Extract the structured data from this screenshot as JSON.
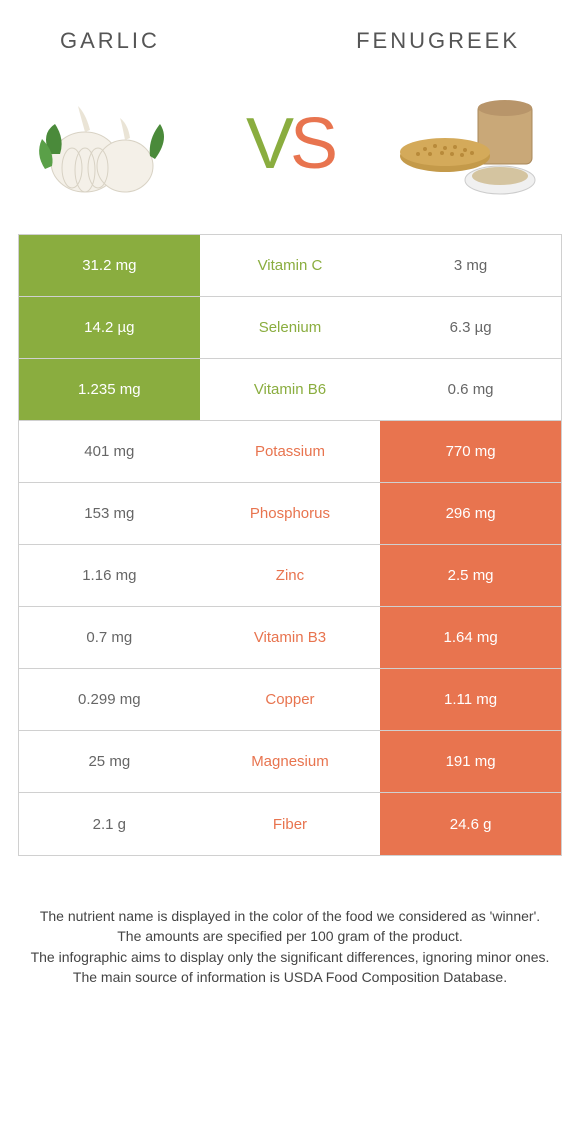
{
  "colors": {
    "left": "#8aad3f",
    "right": "#e8744f",
    "left_loser_bg": "#ffffff",
    "right_loser_bg": "#ffffff",
    "loser_text": "#666666",
    "border": "#d0d0d0"
  },
  "header": {
    "left_title": "GARLIC",
    "right_title": "FENUGREEK"
  },
  "vs": {
    "v": "V",
    "s": "S"
  },
  "rows": [
    {
      "left": "31.2 mg",
      "label": "Vitamin C",
      "right": "3 mg",
      "winner": "left"
    },
    {
      "left": "14.2 µg",
      "label": "Selenium",
      "right": "6.3 µg",
      "winner": "left"
    },
    {
      "left": "1.235 mg",
      "label": "Vitamin B6",
      "right": "0.6 mg",
      "winner": "left"
    },
    {
      "left": "401 mg",
      "label": "Potassium",
      "right": "770 mg",
      "winner": "right"
    },
    {
      "left": "153 mg",
      "label": "Phosphorus",
      "right": "296 mg",
      "winner": "right"
    },
    {
      "left": "1.16 mg",
      "label": "Zinc",
      "right": "2.5 mg",
      "winner": "right"
    },
    {
      "left": "0.7 mg",
      "label": "Vitamin B3",
      "right": "1.64 mg",
      "winner": "right"
    },
    {
      "left": "0.299 mg",
      "label": "Copper",
      "right": "1.11 mg",
      "winner": "right"
    },
    {
      "left": "25 mg",
      "label": "Magnesium",
      "right": "191 mg",
      "winner": "right"
    },
    {
      "left": "2.1 g",
      "label": "Fiber",
      "right": "24.6 g",
      "winner": "right"
    }
  ],
  "footnotes": [
    "The nutrient name is displayed in the color of the food we considered as 'winner'.",
    "The amounts are specified per 100 gram of the product.",
    "The infographic aims to display only the significant differences, ignoring minor ones.",
    "The main source of information is USDA Food Composition Database."
  ]
}
